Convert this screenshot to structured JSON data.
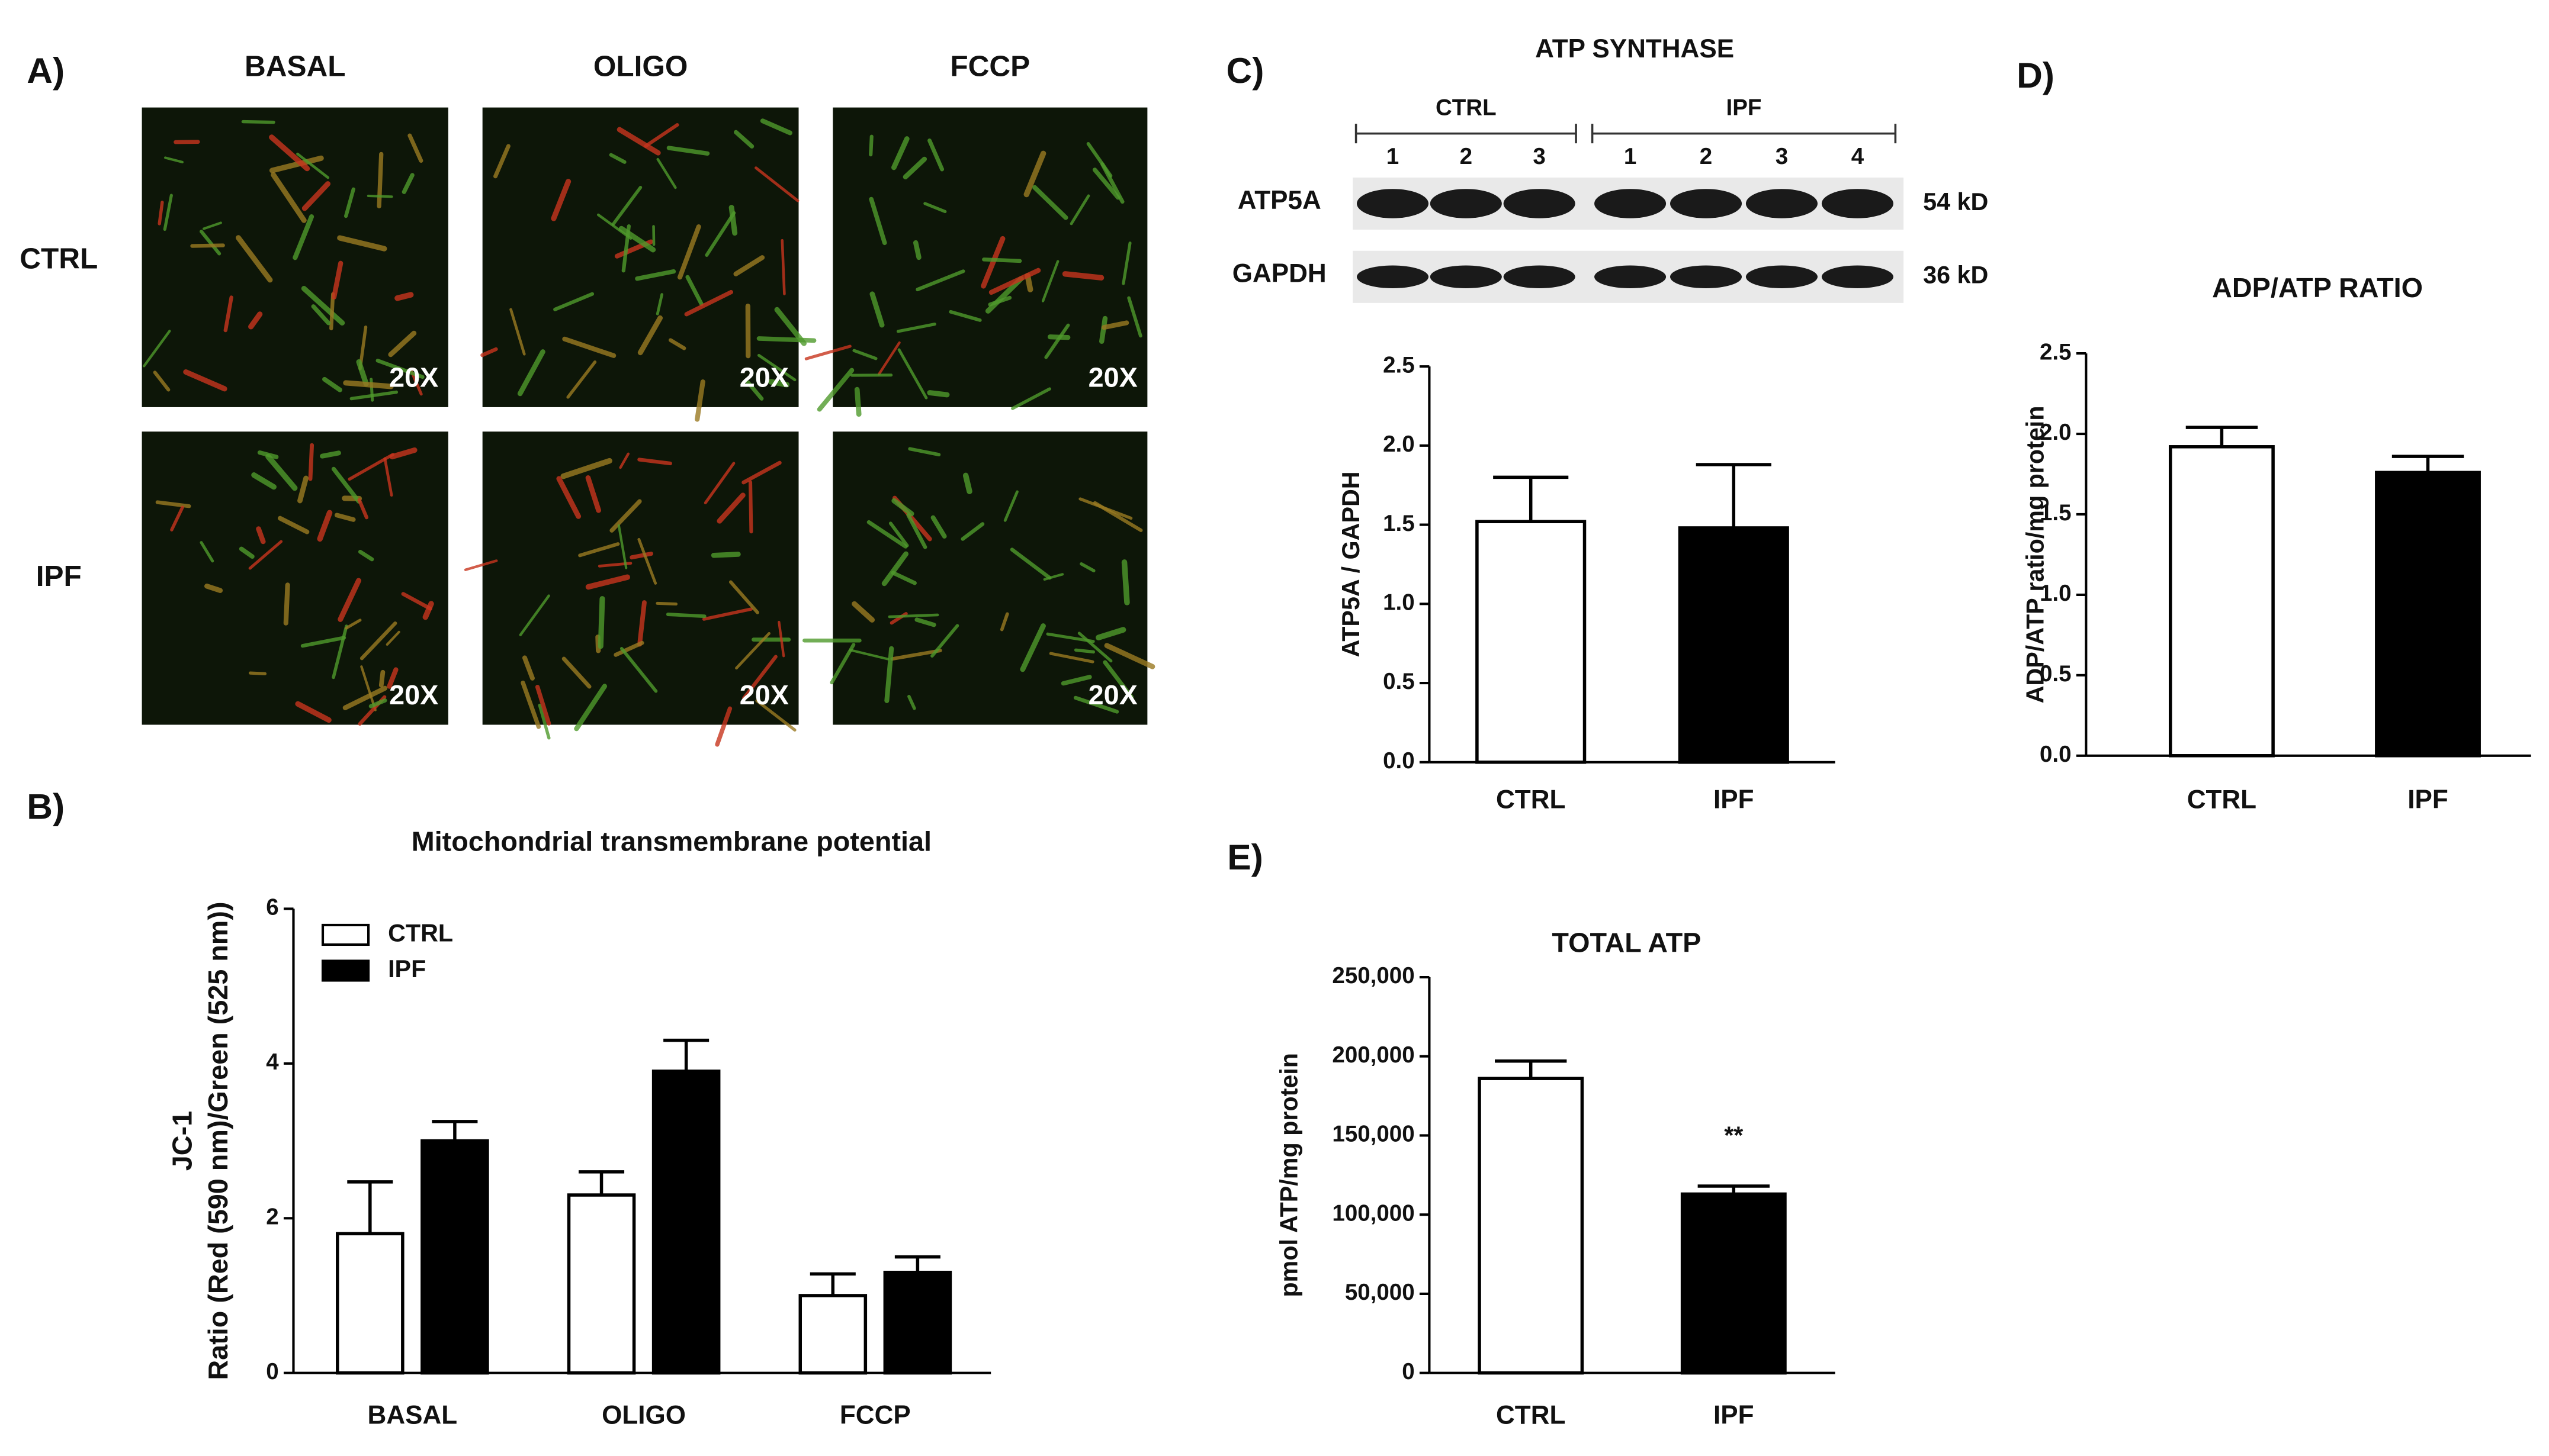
{
  "figure": {
    "panel_labels": [
      "A)",
      "B)",
      "C)",
      "D)",
      "E)"
    ],
    "micrographs": {
      "columns": [
        "BASAL",
        "OLIGO",
        "FCCP"
      ],
      "rows": [
        "CTRL",
        "IPF"
      ],
      "magnification": "20X"
    },
    "western_blot": {
      "title": "ATP SYNTHASE",
      "groups": [
        {
          "name": "CTRL",
          "lanes": [
            "1",
            "2",
            "3"
          ]
        },
        {
          "name": "IPF",
          "lanes": [
            "1",
            "2",
            "3",
            "4"
          ]
        }
      ],
      "bands": [
        {
          "name": "ATP5A",
          "size": "54 kD"
        },
        {
          "name": "GAPDH",
          "size": "36 kD"
        }
      ]
    }
  },
  "chart_data": [
    {
      "type": "bar",
      "title": "Mitochondrial transmembrane potential",
      "y_label": [
        "JC-1",
        "Ratio (Red (590 nm)/Green (525 nm))"
      ],
      "categories": [
        "BASAL",
        "OLIGO",
        "FCCP"
      ],
      "series": [
        {
          "name": "CTRL",
          "color": "#ffffff",
          "values": [
            1.8,
            2.3,
            1.0
          ],
          "errors": [
            0.67,
            0.3,
            0.28
          ]
        },
        {
          "name": "IPF",
          "color": "#000000",
          "values": [
            3.0,
            3.9,
            1.3
          ],
          "errors": [
            0.25,
            0.4,
            0.2
          ]
        }
      ],
      "ylim": [
        0,
        6
      ],
      "yticks": [
        0,
        2,
        4,
        6
      ],
      "legend": "upper left"
    },
    {
      "type": "bar",
      "y_label": "ATP5A / GAPDH",
      "categories": [
        "CTRL",
        "IPF"
      ],
      "values": [
        1.52,
        1.48
      ],
      "errors": [
        0.28,
        0.4
      ],
      "colors": [
        "#ffffff",
        "#000000"
      ],
      "ylim": [
        0,
        2.5
      ],
      "yticks": [
        {
          "value": 0,
          "label": "0.0"
        },
        0.5,
        {
          "value": 1,
          "label": "1.0"
        },
        1.5,
        {
          "value": 2,
          "label": "2.0"
        },
        2.5
      ]
    },
    {
      "type": "bar",
      "title": "ADP/ATP RATIO",
      "y_label": "ADP/ATP ratio/mg protein",
      "categories": [
        "CTRL",
        "IPF"
      ],
      "values": [
        1.92,
        1.76
      ],
      "errors": [
        0.12,
        0.1
      ],
      "colors": [
        "#ffffff",
        "#000000"
      ],
      "ylim": [
        0,
        2.5
      ],
      "yticks": [
        {
          "value": 0,
          "label": "0.0"
        },
        0.5,
        {
          "value": 1,
          "label": "1.0"
        },
        1.5,
        {
          "value": 2,
          "label": "2.0"
        },
        2.5
      ]
    },
    {
      "type": "bar",
      "title": "TOTAL ATP",
      "y_label": "pmol ATP/mg protein",
      "categories": [
        "CTRL",
        "IPF"
      ],
      "values": [
        186000,
        113000
      ],
      "errors": [
        11000,
        5000
      ],
      "colors": [
        "#ffffff",
        "#000000"
      ],
      "ylim": [
        0,
        250000
      ],
      "yticks": [
        0,
        {
          "value": 50000,
          "label": "50,000"
        },
        {
          "value": 100000,
          "label": "100,000"
        },
        {
          "value": 150000,
          "label": "150,000"
        },
        {
          "value": 200000,
          "label": "200,000"
        },
        {
          "value": 250000,
          "label": "250,000"
        }
      ],
      "annotation": "**"
    }
  ]
}
